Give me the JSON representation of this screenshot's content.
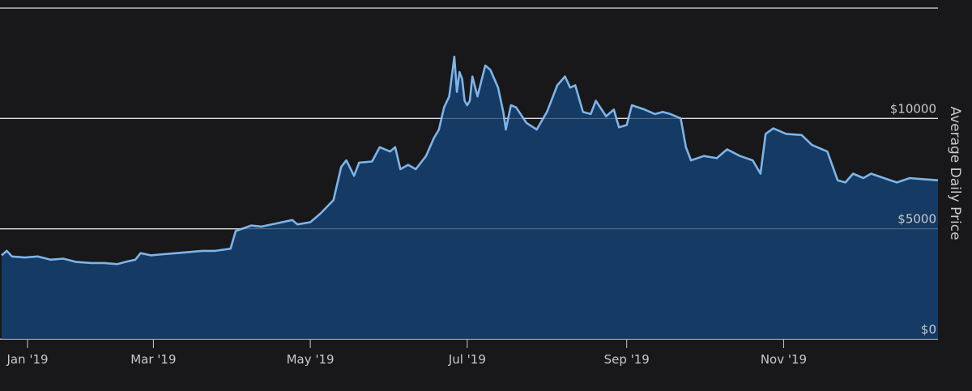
{
  "chart_data": {
    "type": "area",
    "title": "",
    "xlabel": "",
    "ylabel": "Average Daily Price",
    "ylim": [
      0,
      15000
    ],
    "xlim": [
      "2019-01-01",
      "2019-12-31"
    ],
    "grid": true,
    "legend": "none",
    "colors": {
      "line": "#7db4e8",
      "fill": "#153a63",
      "background": "#18181a",
      "grid": "#e0e0e0",
      "text": "#c8c8c8"
    },
    "y_ticks": [
      {
        "value": 0,
        "label": "$0"
      },
      {
        "value": 5000,
        "label": "$5000"
      },
      {
        "value": 10000,
        "label": "$10000"
      }
    ],
    "x_ticks": [
      {
        "date": "2019-01-01",
        "label": "Jan '19"
      },
      {
        "date": "2019-03-01",
        "label": "Mar '19"
      },
      {
        "date": "2019-05-01",
        "label": "May '19"
      },
      {
        "date": "2019-07-01",
        "label": "Jul '19"
      },
      {
        "date": "2019-09-01",
        "label": "Sep '19"
      },
      {
        "date": "2019-11-01",
        "label": "Nov '19"
      }
    ],
    "series": [
      {
        "points": [
          [
            "2019-01-01",
            3800
          ],
          [
            "2019-01-03",
            4000
          ],
          [
            "2019-01-05",
            3750
          ],
          [
            "2019-01-10",
            3700
          ],
          [
            "2019-01-15",
            3750
          ],
          [
            "2019-01-20",
            3600
          ],
          [
            "2019-01-25",
            3650
          ],
          [
            "2019-01-30",
            3500
          ],
          [
            "2019-02-05",
            3450
          ],
          [
            "2019-02-10",
            3450
          ],
          [
            "2019-02-15",
            3400
          ],
          [
            "2019-02-18",
            3500
          ],
          [
            "2019-02-22",
            3600
          ],
          [
            "2019-02-24",
            3900
          ],
          [
            "2019-02-28",
            3800
          ],
          [
            "2019-03-05",
            3850
          ],
          [
            "2019-03-10",
            3900
          ],
          [
            "2019-03-15",
            3950
          ],
          [
            "2019-03-20",
            4000
          ],
          [
            "2019-03-25",
            4000
          ],
          [
            "2019-03-31",
            4100
          ],
          [
            "2019-04-02",
            4900
          ],
          [
            "2019-04-08",
            5150
          ],
          [
            "2019-04-12",
            5100
          ],
          [
            "2019-04-18",
            5250
          ],
          [
            "2019-04-24",
            5400
          ],
          [
            "2019-04-26",
            5200
          ],
          [
            "2019-05-01",
            5300
          ],
          [
            "2019-05-05",
            5700
          ],
          [
            "2019-05-10",
            6300
          ],
          [
            "2019-05-13",
            7800
          ],
          [
            "2019-05-15",
            8100
          ],
          [
            "2019-05-18",
            7400
          ],
          [
            "2019-05-20",
            8000
          ],
          [
            "2019-05-25",
            8050
          ],
          [
            "2019-05-28",
            8700
          ],
          [
            "2019-06-01",
            8500
          ],
          [
            "2019-06-03",
            8700
          ],
          [
            "2019-06-05",
            7700
          ],
          [
            "2019-06-08",
            7900
          ],
          [
            "2019-06-11",
            7700
          ],
          [
            "2019-06-15",
            8300
          ],
          [
            "2019-06-18",
            9100
          ],
          [
            "2019-06-20",
            9500
          ],
          [
            "2019-06-22",
            10500
          ],
          [
            "2019-06-24",
            11000
          ],
          [
            "2019-06-26",
            12800
          ],
          [
            "2019-06-27",
            11200
          ],
          [
            "2019-06-28",
            12100
          ],
          [
            "2019-06-29",
            11800
          ],
          [
            "2019-06-30",
            10800
          ],
          [
            "2019-07-01",
            10600
          ],
          [
            "2019-07-02",
            10800
          ],
          [
            "2019-07-03",
            11900
          ],
          [
            "2019-07-05",
            11000
          ],
          [
            "2019-07-08",
            12400
          ],
          [
            "2019-07-10",
            12200
          ],
          [
            "2019-07-13",
            11400
          ],
          [
            "2019-07-15",
            10300
          ],
          [
            "2019-07-16",
            9500
          ],
          [
            "2019-07-18",
            10600
          ],
          [
            "2019-07-20",
            10500
          ],
          [
            "2019-07-24",
            9800
          ],
          [
            "2019-07-28",
            9500
          ],
          [
            "2019-08-01",
            10300
          ],
          [
            "2019-08-05",
            11500
          ],
          [
            "2019-08-08",
            11900
          ],
          [
            "2019-08-10",
            11400
          ],
          [
            "2019-08-12",
            11500
          ],
          [
            "2019-08-15",
            10300
          ],
          [
            "2019-08-18",
            10200
          ],
          [
            "2019-08-20",
            10800
          ],
          [
            "2019-08-24",
            10100
          ],
          [
            "2019-08-27",
            10400
          ],
          [
            "2019-08-29",
            9600
          ],
          [
            "2019-09-01",
            9700
          ],
          [
            "2019-09-03",
            10600
          ],
          [
            "2019-09-08",
            10400
          ],
          [
            "2019-09-12",
            10200
          ],
          [
            "2019-09-15",
            10300
          ],
          [
            "2019-09-18",
            10200
          ],
          [
            "2019-09-22",
            10000
          ],
          [
            "2019-09-24",
            8700
          ],
          [
            "2019-09-26",
            8100
          ],
          [
            "2019-10-01",
            8300
          ],
          [
            "2019-10-06",
            8200
          ],
          [
            "2019-10-10",
            8600
          ],
          [
            "2019-10-15",
            8300
          ],
          [
            "2019-10-20",
            8100
          ],
          [
            "2019-10-23",
            7500
          ],
          [
            "2019-10-25",
            9300
          ],
          [
            "2019-10-28",
            9550
          ],
          [
            "2019-11-02",
            9300
          ],
          [
            "2019-11-08",
            9250
          ],
          [
            "2019-11-12",
            8800
          ],
          [
            "2019-11-18",
            8500
          ],
          [
            "2019-11-22",
            7200
          ],
          [
            "2019-11-25",
            7100
          ],
          [
            "2019-11-28",
            7500
          ],
          [
            "2019-12-02",
            7300
          ],
          [
            "2019-12-05",
            7500
          ],
          [
            "2019-12-10",
            7300
          ],
          [
            "2019-12-15",
            7100
          ],
          [
            "2019-12-20",
            7300
          ],
          [
            "2019-12-25",
            7250
          ],
          [
            "2019-12-31",
            7200
          ]
        ]
      }
    ]
  }
}
